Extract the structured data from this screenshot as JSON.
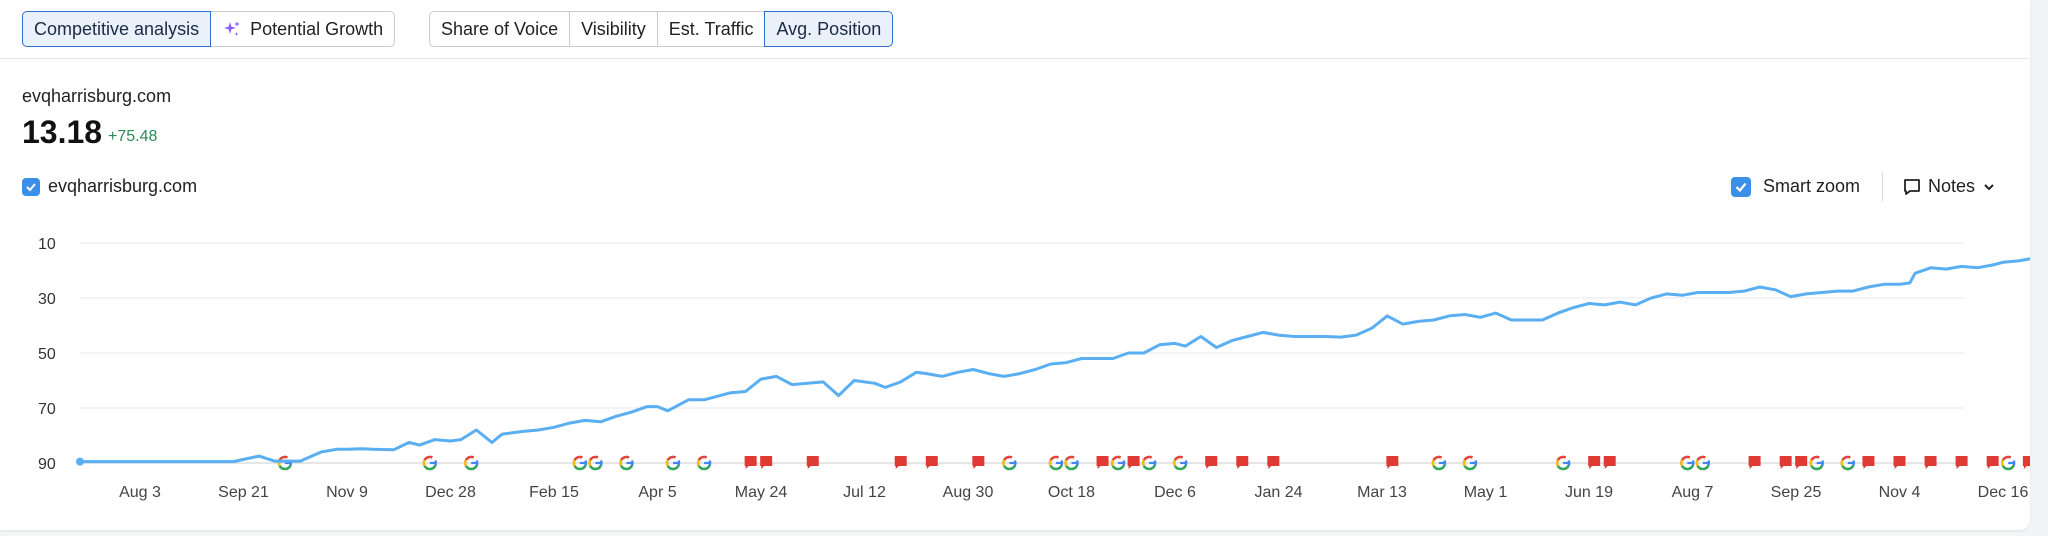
{
  "toolbar": {
    "group1": [
      "Competitive analysis",
      "Potential Growth"
    ],
    "group2": [
      "Share of Voice",
      "Visibility",
      "Est. Traffic",
      "Avg. Position"
    ],
    "active_group1": 0,
    "active_group2": 3
  },
  "summary": {
    "domain": "evqharrisburg.com",
    "value": "13.18",
    "delta": "+75.48"
  },
  "legend": {
    "series_label": "evqharrisburg.com",
    "smart_zoom_label": "Smart zoom",
    "notes_label": "Notes"
  },
  "colors": {
    "line": "#5aaef2",
    "accent": "#2f6fd1",
    "delta": "#2e8b57",
    "note_flag": "#e03a34"
  },
  "chart_data": {
    "type": "line",
    "title": "",
    "xlabel": "",
    "ylabel": "",
    "y_inverted": true,
    "ylim": [
      90,
      10
    ],
    "y_ticks": [
      10,
      30,
      50,
      70,
      90
    ],
    "grid": true,
    "x_tick_labels": [
      "Aug 3",
      "Sep 21",
      "Nov 9",
      "Dec 28",
      "Feb 15",
      "Apr 5",
      "May 24",
      "Jul 12",
      "Aug 30",
      "Oct 18",
      "Dec 6",
      "Jan 24",
      "Mar 13",
      "May 1",
      "Jun 19",
      "Aug 7",
      "Sep 25",
      "Nov 4",
      "Dec 16"
    ],
    "series": [
      {
        "name": "evqharrisburg.com",
        "color": "#5aaef2",
        "values": [
          [
            0,
            89.5
          ],
          [
            0.3,
            89.5
          ],
          [
            0.9,
            89.5
          ],
          [
            1.15,
            87.5
          ],
          [
            1.3,
            89.3
          ],
          [
            1.55,
            89.3
          ],
          [
            1.75,
            86
          ],
          [
            1.9,
            85
          ],
          [
            2.0,
            85
          ],
          [
            2.15,
            84.8
          ],
          [
            2.25,
            85
          ],
          [
            2.45,
            85.2
          ],
          [
            2.6,
            82.5
          ],
          [
            2.7,
            83.5
          ],
          [
            2.85,
            81.5
          ],
          [
            3.0,
            82
          ],
          [
            3.1,
            81.5
          ],
          [
            3.25,
            78
          ],
          [
            3.4,
            82.5
          ],
          [
            3.5,
            79.5
          ],
          [
            3.7,
            78.5
          ],
          [
            3.85,
            78
          ],
          [
            4.0,
            77
          ],
          [
            4.15,
            75.5
          ],
          [
            4.3,
            74.5
          ],
          [
            4.45,
            75
          ],
          [
            4.6,
            73
          ],
          [
            4.75,
            71.5
          ],
          [
            4.9,
            69.5
          ],
          [
            5.0,
            69.5
          ],
          [
            5.1,
            71
          ],
          [
            5.3,
            67
          ],
          [
            5.45,
            67
          ],
          [
            5.7,
            64.5
          ],
          [
            5.85,
            64
          ],
          [
            6.0,
            59.5
          ],
          [
            6.15,
            58.5
          ],
          [
            6.3,
            61.5
          ],
          [
            6.45,
            61
          ],
          [
            6.6,
            60.5
          ],
          [
            6.75,
            65.5
          ],
          [
            6.9,
            60
          ],
          [
            7.1,
            61
          ],
          [
            7.2,
            62.5
          ],
          [
            7.35,
            60.5
          ],
          [
            7.5,
            57
          ],
          [
            7.6,
            57.5
          ],
          [
            7.75,
            58.5
          ],
          [
            7.9,
            57
          ],
          [
            8.05,
            56
          ],
          [
            8.2,
            57.5
          ],
          [
            8.35,
            58.5
          ],
          [
            8.5,
            57.5
          ],
          [
            8.65,
            56
          ],
          [
            8.8,
            54
          ],
          [
            8.95,
            53.5
          ],
          [
            9.1,
            52
          ],
          [
            9.25,
            52
          ],
          [
            9.4,
            52
          ],
          [
            9.55,
            50
          ],
          [
            9.7,
            50
          ],
          [
            9.85,
            47
          ],
          [
            10.0,
            46.5
          ],
          [
            10.1,
            47.5
          ],
          [
            10.25,
            44
          ],
          [
            10.4,
            48
          ],
          [
            10.55,
            45.5
          ],
          [
            10.7,
            44
          ],
          [
            10.85,
            42.5
          ],
          [
            11.0,
            43.5
          ],
          [
            11.15,
            44
          ],
          [
            11.3,
            44
          ],
          [
            11.45,
            44
          ],
          [
            11.6,
            44.2
          ],
          [
            11.75,
            43.5
          ],
          [
            11.9,
            41
          ],
          [
            12.05,
            36.5
          ],
          [
            12.2,
            39.5
          ],
          [
            12.35,
            38.5
          ],
          [
            12.5,
            38
          ],
          [
            12.65,
            36.5
          ],
          [
            12.8,
            36
          ],
          [
            12.95,
            37
          ],
          [
            13.1,
            35.5
          ],
          [
            13.25,
            38
          ],
          [
            13.4,
            38
          ],
          [
            13.55,
            38
          ],
          [
            13.7,
            35.5
          ],
          [
            13.85,
            33.5
          ],
          [
            14.0,
            32
          ],
          [
            14.15,
            32.5
          ],
          [
            14.3,
            31.5
          ],
          [
            14.45,
            32.5
          ],
          [
            14.6,
            30
          ],
          [
            14.75,
            28.5
          ],
          [
            14.9,
            29
          ],
          [
            15.05,
            28
          ],
          [
            15.2,
            28
          ],
          [
            15.35,
            28
          ],
          [
            15.5,
            27.5
          ],
          [
            15.65,
            26
          ],
          [
            15.8,
            27
          ],
          [
            15.95,
            29.5
          ],
          [
            16.1,
            28.5
          ],
          [
            16.25,
            28
          ],
          [
            16.4,
            27.5
          ],
          [
            16.55,
            27.5
          ],
          [
            16.7,
            26
          ],
          [
            16.85,
            25
          ],
          [
            17.0,
            25
          ],
          [
            17.1,
            24.5
          ],
          [
            17.15,
            21
          ],
          [
            17.3,
            19
          ],
          [
            17.45,
            19.5
          ],
          [
            17.6,
            18.5
          ],
          [
            17.75,
            19
          ],
          [
            17.9,
            18
          ],
          [
            18.0,
            17
          ],
          [
            18.15,
            16.5
          ],
          [
            18.3,
            15.5
          ],
          [
            18.45,
            15
          ],
          [
            18.55,
            15.5
          ],
          [
            18.6,
            13.18
          ]
        ]
      }
    ],
    "note_markers": [
      {
        "x": 1.4,
        "kind": "google"
      },
      {
        "x": 2.8,
        "kind": "google"
      },
      {
        "x": 3.2,
        "kind": "google"
      },
      {
        "x": 4.25,
        "kind": "google"
      },
      {
        "x": 4.4,
        "kind": "google"
      },
      {
        "x": 4.7,
        "kind": "google"
      },
      {
        "x": 5.15,
        "kind": "google"
      },
      {
        "x": 5.45,
        "kind": "google"
      },
      {
        "x": 5.9,
        "kind": "note"
      },
      {
        "x": 6.05,
        "kind": "note"
      },
      {
        "x": 6.5,
        "kind": "note"
      },
      {
        "x": 7.35,
        "kind": "note"
      },
      {
        "x": 7.65,
        "kind": "note"
      },
      {
        "x": 8.1,
        "kind": "note"
      },
      {
        "x": 8.4,
        "kind": "google"
      },
      {
        "x": 8.85,
        "kind": "google"
      },
      {
        "x": 9.0,
        "kind": "google"
      },
      {
        "x": 9.3,
        "kind": "note"
      },
      {
        "x": 9.45,
        "kind": "google"
      },
      {
        "x": 9.6,
        "kind": "note"
      },
      {
        "x": 9.75,
        "kind": "google"
      },
      {
        "x": 10.05,
        "kind": "google"
      },
      {
        "x": 10.35,
        "kind": "note"
      },
      {
        "x": 10.65,
        "kind": "note"
      },
      {
        "x": 10.95,
        "kind": "note"
      },
      {
        "x": 12.1,
        "kind": "note"
      },
      {
        "x": 12.55,
        "kind": "google"
      },
      {
        "x": 12.85,
        "kind": "google"
      },
      {
        "x": 13.75,
        "kind": "google"
      },
      {
        "x": 14.05,
        "kind": "note"
      },
      {
        "x": 14.2,
        "kind": "note"
      },
      {
        "x": 14.95,
        "kind": "google"
      },
      {
        "x": 15.1,
        "kind": "google"
      },
      {
        "x": 15.6,
        "kind": "note"
      },
      {
        "x": 15.9,
        "kind": "note"
      },
      {
        "x": 16.05,
        "kind": "note"
      },
      {
        "x": 16.2,
        "kind": "google"
      },
      {
        "x": 16.5,
        "kind": "google"
      },
      {
        "x": 16.7,
        "kind": "note"
      },
      {
        "x": 17.0,
        "kind": "note"
      },
      {
        "x": 17.3,
        "kind": "note"
      },
      {
        "x": 17.6,
        "kind": "note"
      },
      {
        "x": 17.9,
        "kind": "note"
      },
      {
        "x": 18.05,
        "kind": "google"
      },
      {
        "x": 18.25,
        "kind": "note"
      },
      {
        "x": 18.55,
        "kind": "note"
      },
      {
        "x": 18.7,
        "kind": "google"
      }
    ]
  }
}
